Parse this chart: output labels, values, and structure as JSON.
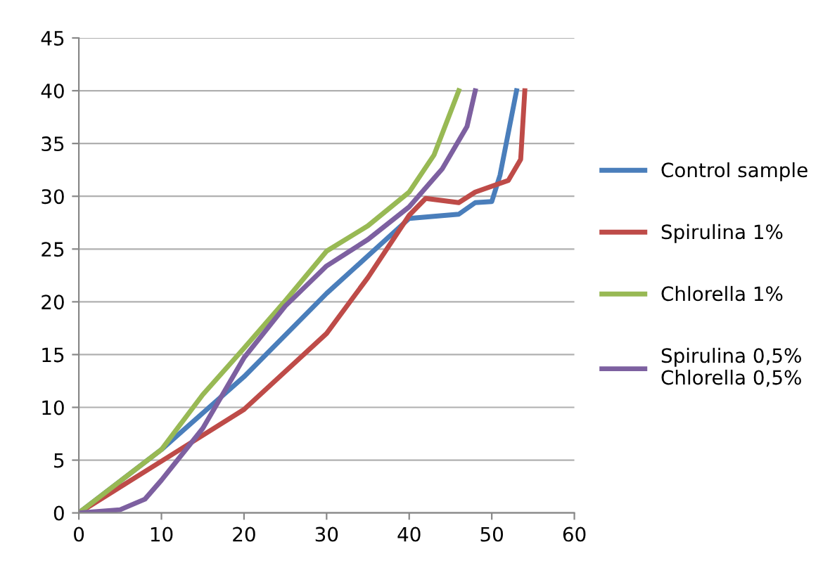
{
  "chart_data": {
    "type": "line",
    "xlim": [
      0,
      60
    ],
    "xticks": [
      0,
      10,
      20,
      30,
      40,
      50,
      60
    ],
    "ylim": [
      0,
      45
    ],
    "yticks": [
      0,
      5,
      10,
      15,
      20,
      25,
      30,
      35,
      40,
      45
    ],
    "grid": "y",
    "legend": "right",
    "marker": "none",
    "line_style": "solid",
    "series": [
      {
        "name": "Control sample",
        "color": "#4a7ebb",
        "x": [
          0,
          10,
          20,
          30,
          40,
          46,
          48,
          50,
          51,
          53
        ],
        "values": [
          0,
          6,
          12.9,
          20.8,
          27.9,
          28.3,
          29.4,
          29.5,
          32,
          40
        ]
      },
      {
        "name": "Spirulina 1%",
        "color": "#be4b48",
        "x": [
          0,
          10,
          20,
          30,
          35,
          40,
          42,
          46,
          48,
          52,
          53.5,
          54
        ],
        "values": [
          0,
          4.9,
          9.8,
          17,
          22.3,
          28.2,
          29.8,
          29.4,
          30.4,
          31.5,
          33.5,
          40
        ]
      },
      {
        "name": "Chlorella 1%",
        "color": "#98b954",
        "x": [
          0,
          10,
          15,
          20,
          25,
          30,
          35,
          40,
          43,
          46
        ],
        "values": [
          0,
          6,
          11.2,
          15.6,
          20.1,
          24.8,
          27.2,
          30.4,
          33.9,
          40
        ]
      },
      {
        "name": "Spirulina 0,5%\nChlorella 0,5%",
        "color": "#7d60a0",
        "x": [
          0,
          5,
          8,
          10,
          15,
          20,
          25,
          30,
          35,
          40,
          44,
          47,
          48
        ],
        "values": [
          0,
          0.3,
          1.3,
          3.1,
          8,
          14.7,
          19.6,
          23.4,
          25.9,
          29,
          32.6,
          36.6,
          40
        ]
      }
    ]
  }
}
